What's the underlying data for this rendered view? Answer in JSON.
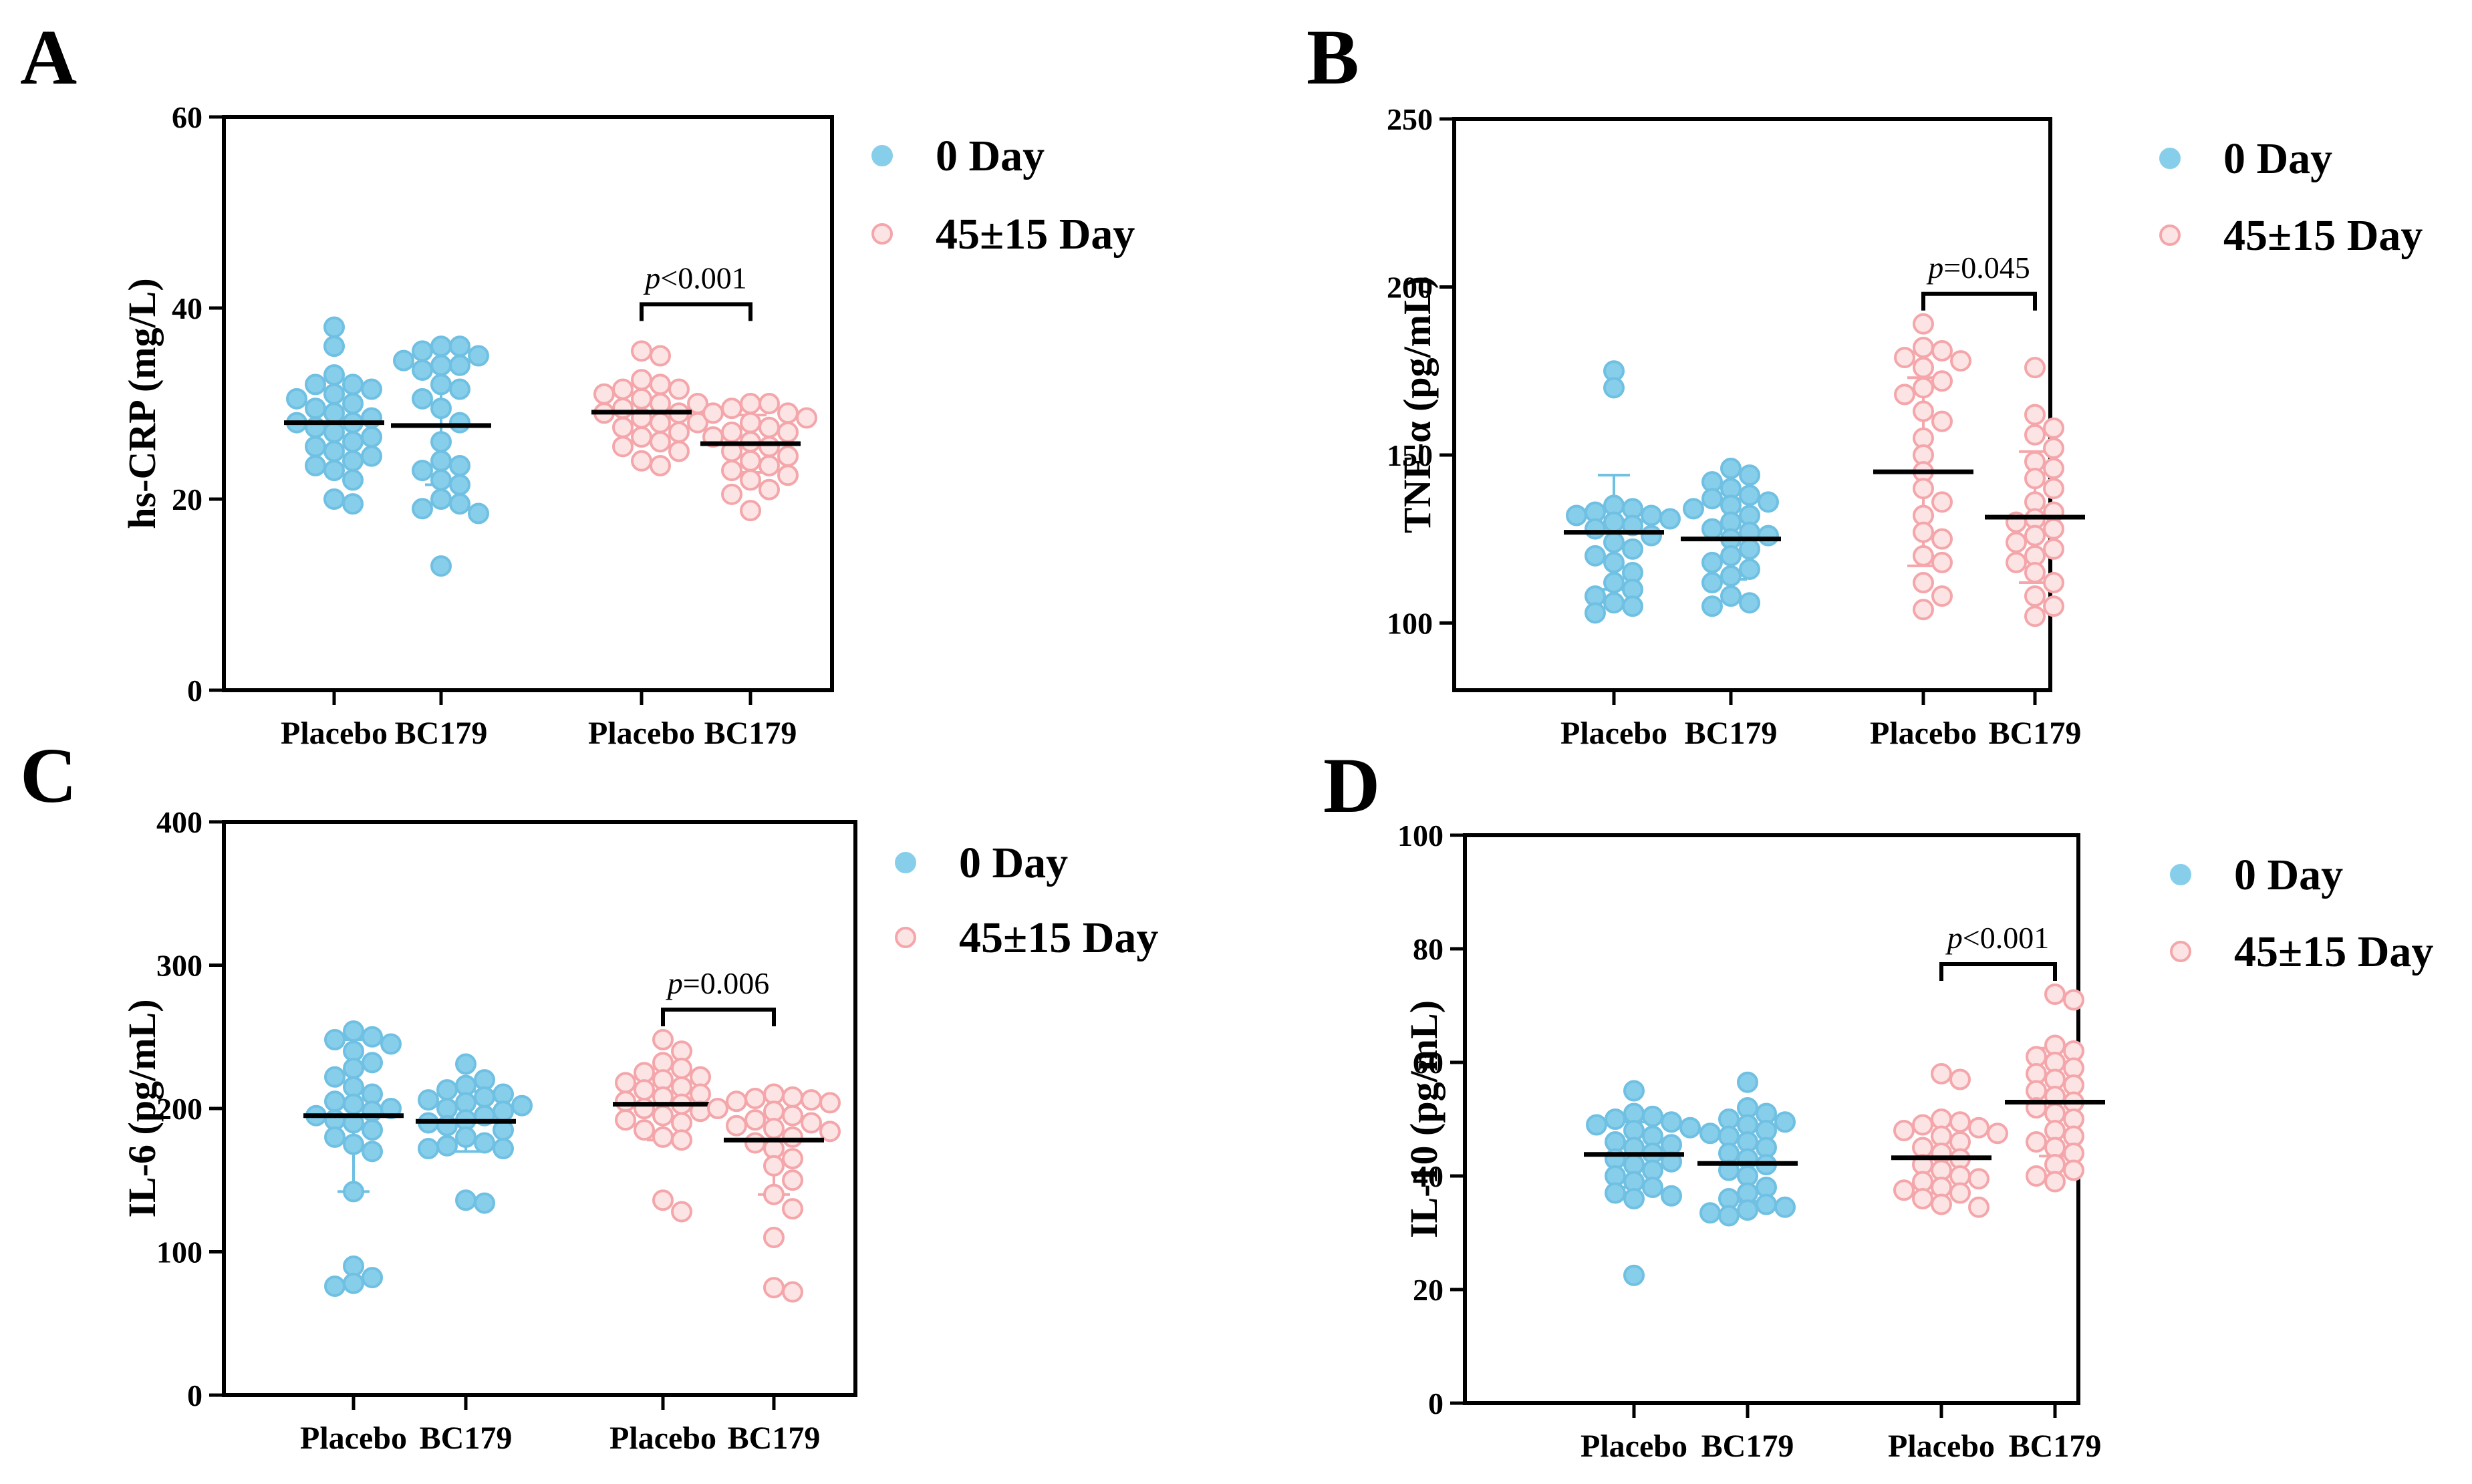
{
  "figure": {
    "legend": {
      "items": [
        {
          "label": "0 Day",
          "color": "#87CEEB",
          "fill": "#87CEEB"
        },
        {
          "label": "45±15 Day",
          "color": "#F4A6AA",
          "fill": "#FCE4E5"
        }
      ]
    },
    "colors": {
      "day0_fill": "#87CEEB",
      "day0_stroke": "#6FC0E2",
      "day45_fill": "#FCE4E5",
      "day45_stroke": "#F4A6AA",
      "mean_line": "#000000",
      "axis": "#000000"
    }
  },
  "chart_data": [
    {
      "panel": "A",
      "type": "scatter",
      "ylabel": "hs-CRP (mg/L)",
      "ylim": [
        0,
        60
      ],
      "yticks": [
        "0",
        "20",
        "40",
        "60"
      ],
      "categories": [
        "Placebo",
        "BC179",
        "Placebo",
        "BC179"
      ],
      "p_value": {
        "prefix": "p",
        "text": "<0.001"
      },
      "series": [
        {
          "name": "0 Day",
          "group": "Placebo",
          "mean": 28.0,
          "sd_low": 23.5,
          "sd_high": 32.5,
          "values": [
            38,
            36,
            33,
            32,
            32,
            31.5,
            31,
            30.5,
            30,
            29.5,
            29,
            28.5,
            28,
            28,
            27.5,
            27,
            26.5,
            26,
            25.5,
            25,
            24.5,
            24,
            23.5,
            23,
            22,
            20,
            19.5
          ]
        },
        {
          "name": "0 Day",
          "group": "BC179",
          "mean": 27.7,
          "sd_low": 21.5,
          "sd_high": 34,
          "values": [
            36,
            36,
            35.5,
            35,
            34.5,
            34,
            34,
            33.5,
            32,
            31.5,
            30.5,
            29.5,
            28,
            26,
            24,
            23.5,
            23,
            22,
            21.5,
            20,
            19.5,
            19,
            18.5,
            13
          ]
        },
        {
          "name": "45±15 Day",
          "group": "Placebo",
          "mean": 29.1,
          "sd_low": 26,
          "sd_high": 32,
          "values": [
            35.5,
            35,
            32.5,
            32,
            31.5,
            31.5,
            31,
            30.5,
            30,
            30,
            29.5,
            29,
            29,
            28.5,
            28,
            28,
            27.5,
            27,
            26.5,
            26,
            25.5,
            25,
            24,
            23.5
          ]
        },
        {
          "name": "45±15 Day",
          "group": "BC179",
          "mean": 25.8,
          "sd_low": 22.8,
          "sd_high": 28.8,
          "values": [
            30,
            30,
            29.5,
            29,
            29,
            28.5,
            28,
            27.5,
            27,
            27,
            26.5,
            26,
            25.5,
            25,
            24.5,
            24,
            23.5,
            23,
            22.5,
            22,
            21,
            20.5,
            18.8
          ]
        }
      ]
    },
    {
      "panel": "B",
      "type": "scatter",
      "ylabel": "TNF-α (pg/mL)",
      "ylim": [
        80,
        250
      ],
      "yticks": [
        "100",
        "150",
        "200",
        "250"
      ],
      "categories": [
        "Placebo",
        "BC179",
        "Placebo",
        "BC179"
      ],
      "p_value": {
        "prefix": "p",
        "text": "=0.045"
      },
      "series": [
        {
          "name": "0 Day",
          "group": "Placebo",
          "mean": 127,
          "sd_low": 110,
          "sd_high": 144,
          "values": [
            175,
            170,
            135,
            134,
            133,
            132,
            132,
            131,
            130,
            129,
            128,
            126,
            124,
            122,
            120,
            118,
            115,
            112,
            110,
            108,
            106,
            105,
            103
          ]
        },
        {
          "name": "0 Day",
          "group": "BC179",
          "mean": 125,
          "sd_low": 113,
          "sd_high": 137,
          "values": [
            146,
            144,
            142,
            140,
            138,
            137,
            136,
            135,
            134,
            132,
            130,
            128,
            127,
            126,
            125,
            122,
            120,
            118,
            116,
            114,
            112,
            108,
            106,
            105
          ]
        },
        {
          "name": "45±15 Day",
          "group": "Placebo",
          "mean": 145,
          "sd_low": 117,
          "sd_high": 173,
          "values": [
            189,
            182,
            181,
            179,
            178,
            176,
            172,
            170,
            168,
            163,
            160,
            155,
            150,
            145,
            140,
            136,
            132,
            127,
            125,
            120,
            118,
            112,
            108,
            104
          ]
        },
        {
          "name": "45±15 Day",
          "group": "BC179",
          "mean": 131.5,
          "sd_low": 112,
          "sd_high": 151,
          "values": [
            176,
            162,
            158,
            156,
            152,
            148,
            146,
            143,
            140,
            136,
            133,
            131,
            130,
            128,
            126,
            124,
            122,
            120,
            118,
            115,
            112,
            108,
            105,
            102
          ]
        }
      ]
    },
    {
      "panel": "C",
      "type": "scatter",
      "ylabel": "IL-6 (pg/mL)",
      "ylim": [
        0,
        400
      ],
      "yticks": [
        "0",
        "100",
        "200",
        "300",
        "400"
      ],
      "categories": [
        "Placebo",
        "BC179",
        "Placebo",
        "BC179"
      ],
      "p_value": {
        "prefix": "p",
        "text": "=0.006"
      },
      "series": [
        {
          "name": "0 Day",
          "group": "Placebo",
          "mean": 195,
          "sd_low": 142,
          "sd_high": 248,
          "values": [
            254,
            250,
            248,
            245,
            240,
            232,
            228,
            222,
            215,
            210,
            205,
            203,
            200,
            198,
            195,
            192,
            190,
            185,
            180,
            175,
            170,
            142,
            90,
            82,
            78,
            76
          ]
        },
        {
          "name": "0 Day",
          "group": "BC179",
          "mean": 191,
          "sd_low": 170,
          "sd_high": 212,
          "values": [
            231,
            220,
            216,
            213,
            210,
            208,
            206,
            204,
            202,
            200,
            198,
            195,
            192,
            190,
            188,
            185,
            180,
            176,
            174,
            172,
            172,
            136,
            134
          ]
        },
        {
          "name": "45±15 Day",
          "group": "Placebo",
          "mean": 203,
          "sd_low": 178,
          "sd_high": 228,
          "values": [
            248,
            240,
            232,
            228,
            225,
            222,
            220,
            218,
            215,
            213,
            210,
            208,
            205,
            203,
            200,
            198,
            195,
            192,
            190,
            185,
            180,
            178,
            136,
            128
          ]
        },
        {
          "name": "45±15 Day",
          "group": "BC179",
          "mean": 178,
          "sd_low": 140,
          "sd_high": 210,
          "values": [
            210,
            208,
            207,
            206,
            205,
            204,
            200,
            198,
            195,
            192,
            190,
            188,
            186,
            184,
            180,
            176,
            172,
            165,
            160,
            150,
            140,
            130,
            110,
            75,
            72
          ]
        }
      ]
    },
    {
      "panel": "D",
      "type": "scatter",
      "ylabel": "IL-10 (pg/mL)",
      "ylim": [
        0,
        100
      ],
      "yticks": [
        "0",
        "20",
        "40",
        "60",
        "80",
        "100"
      ],
      "categories": [
        "Placebo",
        "BC179",
        "Placebo",
        "BC179"
      ],
      "p_value": {
        "prefix": "p",
        "text": "<0.001"
      },
      "series": [
        {
          "name": "0 Day",
          "group": "Placebo",
          "mean": 43.8,
          "sd_low": 38,
          "sd_high": 49.5,
          "values": [
            55,
            51,
            50.5,
            50,
            49.5,
            49,
            48.5,
            48,
            47,
            46,
            45.5,
            45,
            44,
            43,
            42.5,
            42,
            41,
            40,
            39,
            38,
            37,
            36.5,
            36,
            22.5
          ]
        },
        {
          "name": "0 Day",
          "group": "BC179",
          "mean": 42.2,
          "sd_low": 35.5,
          "sd_high": 49
        },
        {
          "name": "45±15 Day",
          "group": "Placebo",
          "mean": 43.2,
          "sd_low": 37,
          "sd_high": 49,
          "values": [
            58,
            57,
            50,
            49.5,
            49,
            48.5,
            48,
            47.5,
            47,
            46,
            45,
            44,
            43,
            42,
            41,
            40,
            39.5,
            39,
            38,
            37.5,
            37,
            36,
            35,
            34.5
          ]
        },
        {
          "name": "45±15 Day",
          "group": "BC179",
          "mean": 53,
          "sd_low": 43.5,
          "sd_high": 62.5,
          "values": [
            72,
            71,
            63,
            62,
            61,
            60,
            59,
            58,
            57,
            56,
            55,
            54,
            53,
            52,
            51,
            50,
            48,
            47,
            46,
            45,
            44,
            42,
            41,
            40,
            39
          ]
        }
      ]
    }
  ]
}
